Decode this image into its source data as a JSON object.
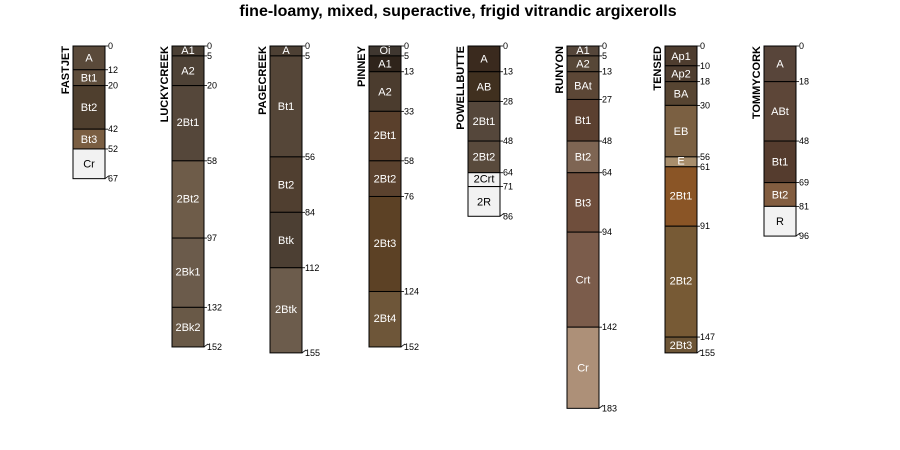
{
  "chart_data": {
    "type": "soil-profile-sketch",
    "title": "fine-loamy, mixed, superactive, frigid vitrandic argixerolls",
    "depth_units": "cm",
    "profiles": [
      {
        "name": "FASTJET",
        "horizons": [
          {
            "name": "A",
            "top": 0,
            "bottom": 12,
            "color": "#5a4a3a"
          },
          {
            "name": "Bt1",
            "top": 12,
            "bottom": 20,
            "color": "#5e4d3b"
          },
          {
            "name": "Bt2",
            "top": 20,
            "bottom": 42,
            "color": "#4f3f2e"
          },
          {
            "name": "Bt3",
            "top": 42,
            "bottom": 52,
            "color": "#7a5e42"
          },
          {
            "name": "Cr",
            "top": 52,
            "bottom": 67,
            "color": "#f2f2f2"
          }
        ]
      },
      {
        "name": "LUCKYCREEK",
        "horizons": [
          {
            "name": "A1",
            "top": 0,
            "bottom": 5,
            "color": "#4a3f34"
          },
          {
            "name": "A2",
            "top": 5,
            "bottom": 20,
            "color": "#4e4236"
          },
          {
            "name": "2Bt1",
            "top": 20,
            "bottom": 58,
            "color": "#55473a"
          },
          {
            "name": "2Bt2",
            "top": 58,
            "bottom": 97,
            "color": "#6e5c49"
          },
          {
            "name": "2Bk1",
            "top": 97,
            "bottom": 132,
            "color": "#6b5b4b"
          },
          {
            "name": "2Bk2",
            "top": 132,
            "bottom": 152,
            "color": "#695947"
          }
        ]
      },
      {
        "name": "PAGECREEK",
        "horizons": [
          {
            "name": "A",
            "top": 0,
            "bottom": 5,
            "color": "#4d4034"
          },
          {
            "name": "Bt1",
            "top": 5,
            "bottom": 56,
            "color": "#554638"
          },
          {
            "name": "Bt2",
            "top": 56,
            "bottom": 84,
            "color": "#503f30"
          },
          {
            "name": "Btk",
            "top": 84,
            "bottom": 112,
            "color": "#4c3f33"
          },
          {
            "name": "2Btk",
            "top": 112,
            "bottom": 155,
            "color": "#6c5c4c"
          }
        ]
      },
      {
        "name": "PINNEY",
        "horizons": [
          {
            "name": "Oi",
            "top": 0,
            "bottom": 5,
            "color": "#3f3730"
          },
          {
            "name": "A1",
            "top": 5,
            "bottom": 13,
            "color": "#2f241b"
          },
          {
            "name": "A2",
            "top": 13,
            "bottom": 33,
            "color": "#4b3c2e"
          },
          {
            "name": "2Bt1",
            "top": 33,
            "bottom": 58,
            "color": "#5a402c"
          },
          {
            "name": "2Bt2",
            "top": 58,
            "bottom": 76,
            "color": "#5b422e"
          },
          {
            "name": "2Bt3",
            "top": 76,
            "bottom": 124,
            "color": "#5c4125"
          },
          {
            "name": "2Bt4",
            "top": 124,
            "bottom": 152,
            "color": "#6e5639"
          }
        ]
      },
      {
        "name": "POWELLBUTTE",
        "horizons": [
          {
            "name": "A",
            "top": 0,
            "bottom": 13,
            "color": "#3a2a1e"
          },
          {
            "name": "AB",
            "top": 13,
            "bottom": 28,
            "color": "#40301f"
          },
          {
            "name": "2Bt1",
            "top": 28,
            "bottom": 48,
            "color": "#55473b"
          },
          {
            "name": "2Bt2",
            "top": 48,
            "bottom": 64,
            "color": "#594a3c"
          },
          {
            "name": "2Crt",
            "top": 64,
            "bottom": 71,
            "color": "#f2f2f2"
          },
          {
            "name": "2R",
            "top": 71,
            "bottom": 86,
            "color": "#f2f2f2"
          }
        ]
      },
      {
        "name": "RUNYON",
        "horizons": [
          {
            "name": "A1",
            "top": 0,
            "bottom": 5,
            "color": "#55463a"
          },
          {
            "name": "A2",
            "top": 5,
            "bottom": 13,
            "color": "#574737"
          },
          {
            "name": "BAt",
            "top": 13,
            "bottom": 27,
            "color": "#5c4736"
          },
          {
            "name": "Bt1",
            "top": 27,
            "bottom": 48,
            "color": "#5b4030"
          },
          {
            "name": "Bt2",
            "top": 48,
            "bottom": 64,
            "color": "#7e6553"
          },
          {
            "name": "Bt3",
            "top": 64,
            "bottom": 94,
            "color": "#6f4e3c"
          },
          {
            "name": "Crt",
            "top": 94,
            "bottom": 142,
            "color": "#7b5c4b"
          },
          {
            "name": "Cr",
            "top": 142,
            "bottom": 183,
            "color": "#ad9078"
          }
        ]
      },
      {
        "name": "TENSED",
        "horizons": [
          {
            "name": "Ap1",
            "top": 0,
            "bottom": 10,
            "color": "#4e3d2f"
          },
          {
            "name": "Ap2",
            "top": 10,
            "bottom": 18,
            "color": "#4f3e30"
          },
          {
            "name": "BA",
            "top": 18,
            "bottom": 30,
            "color": "#574532"
          },
          {
            "name": "EB",
            "top": 30,
            "bottom": 56,
            "color": "#7b6042"
          },
          {
            "name": "E",
            "top": 56,
            "bottom": 61,
            "color": "#a88e6c"
          },
          {
            "name": "2Bt1",
            "top": 61,
            "bottom": 91,
            "color": "#8a5526"
          },
          {
            "name": "2Bt2",
            "top": 91,
            "bottom": 147,
            "color": "#775a35"
          },
          {
            "name": "2Bt3",
            "top": 147,
            "bottom": 155,
            "color": "#6d5536"
          }
        ]
      },
      {
        "name": "TOMMYCORK",
        "horizons": [
          {
            "name": "A",
            "top": 0,
            "bottom": 18,
            "color": "#58453a"
          },
          {
            "name": "ABt",
            "top": 18,
            "bottom": 48,
            "color": "#5d4638"
          },
          {
            "name": "Bt1",
            "top": 48,
            "bottom": 69,
            "color": "#553c2e"
          },
          {
            "name": "Bt2",
            "top": 69,
            "bottom": 81,
            "color": "#825d40"
          },
          {
            "name": "R",
            "top": 81,
            "bottom": 96,
            "color": "#f2f2f2"
          }
        ]
      }
    ]
  }
}
